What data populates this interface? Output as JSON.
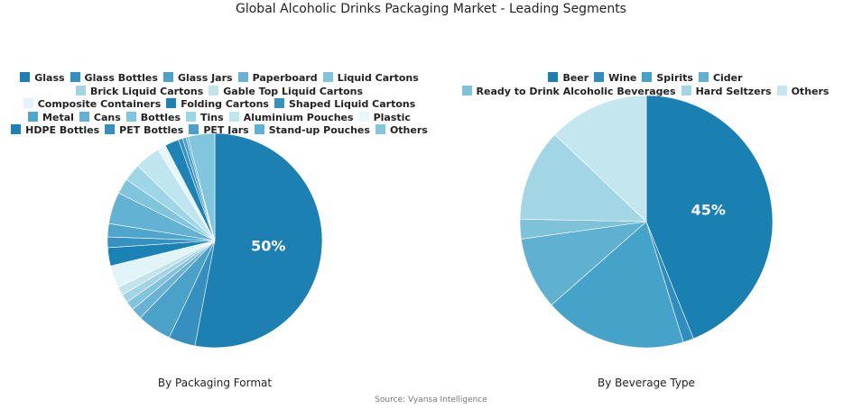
{
  "title": "Global Alcoholic Drinks Packaging Market - Leading Segments",
  "source": "Source: Vyansa Intelligence",
  "chart_data": [
    {
      "type": "pie",
      "title": "By Packaging Format",
      "legend_position": "top",
      "categories": [
        "Glass",
        "Glass Bottles",
        "Glass Jars",
        "Paperboard",
        "Liquid Cartons",
        "Brick Liquid Cartons",
        "Gable Top Liquid Cartons",
        "Composite Containers",
        "Folding Cartons",
        "Shaped Liquid Cartons",
        "Metal",
        "Cans",
        "Bottles",
        "Tins",
        "Aluminium Pouches",
        "Plastic",
        "HDPE Bottles",
        "PET Bottles",
        "PET Jars",
        "Stand-up Pouches",
        "Others"
      ],
      "values": [
        50,
        3.8,
        4.9,
        1.6,
        1.3,
        1.2,
        1.2,
        3.2,
        2.6,
        1.5,
        1.9,
        4.5,
        2.2,
        2.5,
        3.6,
        1.2,
        2.0,
        0.6,
        0.5,
        0.3,
        3.8
      ],
      "colors": [
        "#1d80b2",
        "#358fbf",
        "#4ba2c9",
        "#6ab1d3",
        "#83c4dc",
        "#a3d4e4",
        "#c1e4ec",
        "#e3f4f8",
        "#1a82b4",
        "#3592c0",
        "#4ea6cc",
        "#63b1d3",
        "#80c5dd",
        "#9dd6e6",
        "#bfe5ee",
        "#e6f6fa",
        "#1d82b5",
        "#358fc0",
        "#4c9fcc",
        "#5fb0d6",
        "#82c6de"
      ],
      "data_labels": [
        "50%"
      ]
    },
    {
      "type": "pie",
      "title": "By Beverage Type",
      "legend_position": "top",
      "categories": [
        "Beer",
        "Wine",
        "Spirits",
        "Cider",
        "Ready to Drink Alcoholic Beverages",
        "Hard Seltzers",
        "Others"
      ],
      "values": [
        45,
        1.4,
        18.7,
        9.5,
        2.6,
        12.1,
        13.2
      ],
      "colors": [
        "#1a80b2",
        "#2f8ebf",
        "#45a2c9",
        "#5fb0d1",
        "#7ec2da",
        "#a2d6e5",
        "#c4e7ef"
      ],
      "data_labels": [
        "45%"
      ]
    }
  ]
}
